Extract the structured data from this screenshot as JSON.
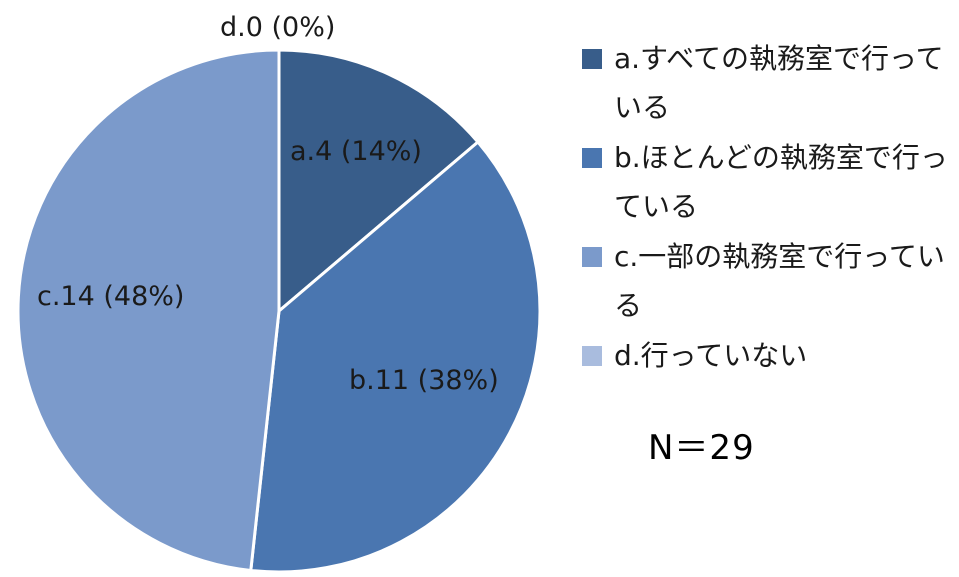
{
  "chart_data": {
    "type": "pie",
    "total_label": "N＝29",
    "slices": [
      {
        "key": "a",
        "value": 4,
        "percent": 14,
        "label": "a.4 (14%)",
        "legend": "a.すべての執務室で行っている",
        "color": "#385d8a"
      },
      {
        "key": "b",
        "value": 11,
        "percent": 38,
        "label": "b.11 (38%)",
        "legend": "b.ほとんどの執務室で行っている",
        "color": "#4a76b0"
      },
      {
        "key": "c",
        "value": 14,
        "percent": 48,
        "label": "c.14 (48%)",
        "legend": "c.一部の執務室で行っている",
        "color": "#7b9acb"
      },
      {
        "key": "d",
        "value": 0,
        "percent": 0,
        "label": "d.0 (0%)",
        "legend": "d.行っていない",
        "color": "#a9bcde"
      }
    ],
    "legend_position": "right"
  }
}
